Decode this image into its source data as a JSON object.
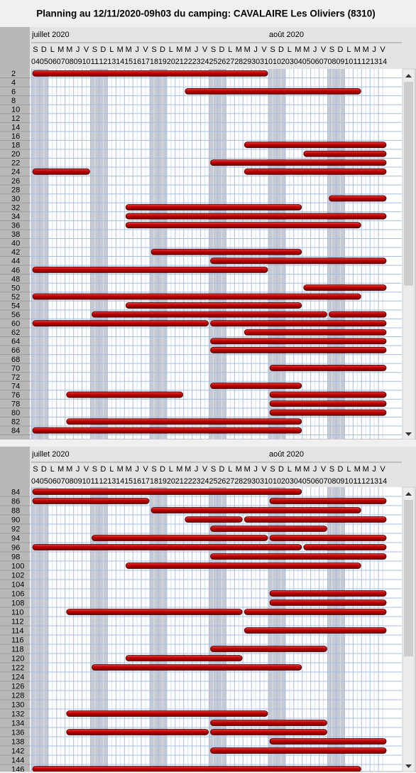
{
  "title": "Planning au 12/11/2020-09h03 du camping:  CAVALAIRE Les Oliviers (8310)",
  "months": [
    {
      "label": "juillet 2020",
      "start": 0
    },
    {
      "label": "août 2020",
      "start": 28
    }
  ],
  "days": [
    {
      "letter": "S",
      "number": "04"
    },
    {
      "letter": "D",
      "number": "05"
    },
    {
      "letter": "L",
      "number": "06"
    },
    {
      "letter": "M",
      "number": "07"
    },
    {
      "letter": "M",
      "number": "08"
    },
    {
      "letter": "J",
      "number": "09"
    },
    {
      "letter": "V",
      "number": "10"
    },
    {
      "letter": "S",
      "number": "11"
    },
    {
      "letter": "D",
      "number": "12"
    },
    {
      "letter": "L",
      "number": "13"
    },
    {
      "letter": "M",
      "number": "14"
    },
    {
      "letter": "M",
      "number": "15"
    },
    {
      "letter": "J",
      "number": "16"
    },
    {
      "letter": "V",
      "number": "17"
    },
    {
      "letter": "S",
      "number": "18"
    },
    {
      "letter": "D",
      "number": "19"
    },
    {
      "letter": "L",
      "number": "20"
    },
    {
      "letter": "M",
      "number": "21"
    },
    {
      "letter": "M",
      "number": "22"
    },
    {
      "letter": "J",
      "number": "23"
    },
    {
      "letter": "V",
      "number": "24"
    },
    {
      "letter": "S",
      "number": "25"
    },
    {
      "letter": "D",
      "number": "26"
    },
    {
      "letter": "L",
      "number": "27"
    },
    {
      "letter": "M",
      "number": "28"
    },
    {
      "letter": "M",
      "number": "29"
    },
    {
      "letter": "J",
      "number": "30"
    },
    {
      "letter": "V",
      "number": "31"
    },
    {
      "letter": "S",
      "number": "01"
    },
    {
      "letter": "D",
      "number": "02"
    },
    {
      "letter": "L",
      "number": "03"
    },
    {
      "letter": "M",
      "number": "04"
    },
    {
      "letter": "M",
      "number": "05"
    },
    {
      "letter": "J",
      "number": "06"
    },
    {
      "letter": "V",
      "number": "07"
    },
    {
      "letter": "S",
      "number": "08"
    },
    {
      "letter": "D",
      "number": "09"
    },
    {
      "letter": "L",
      "number": "10"
    },
    {
      "letter": "M",
      "number": "11"
    },
    {
      "letter": "M",
      "number": "12"
    },
    {
      "letter": "J",
      "number": "13"
    },
    {
      "letter": "V",
      "number": "14"
    }
  ],
  "panels": [
    {
      "rows": [
        {
          "label": "2",
          "bookings": [
            [
              0,
              27
            ]
          ]
        },
        {
          "label": "4",
          "bookings": []
        },
        {
          "label": "6",
          "bookings": [
            [
              18,
              38
            ]
          ]
        },
        {
          "label": "8",
          "bookings": []
        },
        {
          "label": "10",
          "bookings": []
        },
        {
          "label": "12",
          "bookings": []
        },
        {
          "label": "14",
          "bookings": []
        },
        {
          "label": "16",
          "bookings": []
        },
        {
          "label": "18",
          "bookings": [
            [
              25,
              41
            ]
          ]
        },
        {
          "label": "20",
          "bookings": [
            [
              32,
              41
            ]
          ]
        },
        {
          "label": "22",
          "bookings": [
            [
              21,
              41
            ]
          ]
        },
        {
          "label": "24",
          "bookings": [
            [
              0,
              6
            ],
            [
              25,
              41
            ]
          ]
        },
        {
          "label": "26",
          "bookings": []
        },
        {
          "label": "28",
          "bookings": []
        },
        {
          "label": "30",
          "bookings": [
            [
              35,
              41
            ]
          ]
        },
        {
          "label": "32",
          "bookings": [
            [
              11,
              31
            ]
          ]
        },
        {
          "label": "34",
          "bookings": [
            [
              11,
              41
            ]
          ]
        },
        {
          "label": "36",
          "bookings": [
            [
              11,
              38
            ]
          ]
        },
        {
          "label": "38",
          "bookings": []
        },
        {
          "label": "40",
          "bookings": []
        },
        {
          "label": "42",
          "bookings": [
            [
              14,
              31
            ]
          ]
        },
        {
          "label": "44",
          "bookings": [
            [
              21,
              41
            ]
          ]
        },
        {
          "label": "46",
          "bookings": [
            [
              0,
              27
            ]
          ]
        },
        {
          "label": "48",
          "bookings": []
        },
        {
          "label": "50",
          "bookings": [
            [
              32,
              41
            ]
          ]
        },
        {
          "label": "52",
          "bookings": [
            [
              0,
              38
            ]
          ]
        },
        {
          "label": "54",
          "bookings": [
            [
              11,
              31
            ]
          ]
        },
        {
          "label": "56",
          "bookings": [
            [
              7,
              34
            ],
            [
              35,
              41
            ]
          ]
        },
        {
          "label": "60",
          "bookings": [
            [
              0,
              20
            ],
            [
              21,
              41
            ]
          ]
        },
        {
          "label": "62",
          "bookings": [
            [
              25,
              41
            ]
          ]
        },
        {
          "label": "64",
          "bookings": [
            [
              21,
              41
            ]
          ]
        },
        {
          "label": "66",
          "bookings": [
            [
              21,
              41
            ]
          ]
        },
        {
          "label": "68",
          "bookings": []
        },
        {
          "label": "70",
          "bookings": [
            [
              28,
              41
            ]
          ]
        },
        {
          "label": "72",
          "bookings": []
        },
        {
          "label": "74",
          "bookings": [
            [
              21,
              31
            ]
          ]
        },
        {
          "label": "76",
          "bookings": [
            [
              4,
              17
            ],
            [
              28,
              41
            ]
          ]
        },
        {
          "label": "78",
          "bookings": [
            [
              28,
              41
            ]
          ]
        },
        {
          "label": "80",
          "bookings": [
            [
              28,
              41
            ]
          ]
        },
        {
          "label": "82",
          "bookings": [
            [
              4,
              31
            ]
          ]
        },
        {
          "label": "84",
          "bookings": [
            [
              0,
              31
            ]
          ]
        }
      ]
    },
    {
      "rows": [
        {
          "label": "84",
          "bookings": [
            [
              0,
              31
            ]
          ]
        },
        {
          "label": "86",
          "bookings": [
            [
              0,
              13
            ],
            [
              28,
              41
            ]
          ]
        },
        {
          "label": "88",
          "bookings": [
            [
              14,
              38
            ]
          ]
        },
        {
          "label": "90",
          "bookings": [
            [
              18,
              24
            ],
            [
              25,
              41
            ]
          ]
        },
        {
          "label": "92",
          "bookings": [
            [
              21,
              34
            ]
          ]
        },
        {
          "label": "94",
          "bookings": [
            [
              7,
              27
            ],
            [
              28,
              41
            ]
          ]
        },
        {
          "label": "96",
          "bookings": [
            [
              0,
              31
            ],
            [
              32,
              41
            ]
          ]
        },
        {
          "label": "98",
          "bookings": [
            [
              21,
              41
            ]
          ]
        },
        {
          "label": "100",
          "bookings": [
            [
              11,
              38
            ]
          ]
        },
        {
          "label": "102",
          "bookings": []
        },
        {
          "label": "104",
          "bookings": []
        },
        {
          "label": "106",
          "bookings": [
            [
              28,
              41
            ]
          ]
        },
        {
          "label": "108",
          "bookings": [
            [
              28,
              41
            ]
          ]
        },
        {
          "label": "110",
          "bookings": [
            [
              4,
              24
            ],
            [
              25,
              41
            ]
          ]
        },
        {
          "label": "112",
          "bookings": []
        },
        {
          "label": "114",
          "bookings": [
            [
              25,
              41
            ]
          ]
        },
        {
          "label": "116",
          "bookings": []
        },
        {
          "label": "118",
          "bookings": [
            [
              21,
              34
            ]
          ]
        },
        {
          "label": "120",
          "bookings": [
            [
              11,
              24
            ]
          ]
        },
        {
          "label": "122",
          "bookings": [
            [
              7,
              31
            ]
          ]
        },
        {
          "label": "124",
          "bookings": []
        },
        {
          "label": "126",
          "bookings": []
        },
        {
          "label": "128",
          "bookings": []
        },
        {
          "label": "130",
          "bookings": []
        },
        {
          "label": "132",
          "bookings": [
            [
              4,
              27
            ]
          ]
        },
        {
          "label": "134",
          "bookings": [
            [
              21,
              34
            ]
          ]
        },
        {
          "label": "136",
          "bookings": [
            [
              4,
              20
            ],
            [
              21,
              34
            ]
          ]
        },
        {
          "label": "138",
          "bookings": [
            [
              28,
              41
            ]
          ]
        },
        {
          "label": "142",
          "bookings": [
            [
              21,
              41
            ]
          ]
        },
        {
          "label": "144",
          "bookings": []
        },
        {
          "label": "146",
          "bookings": [
            [
              0,
              38
            ]
          ]
        }
      ]
    }
  ]
}
